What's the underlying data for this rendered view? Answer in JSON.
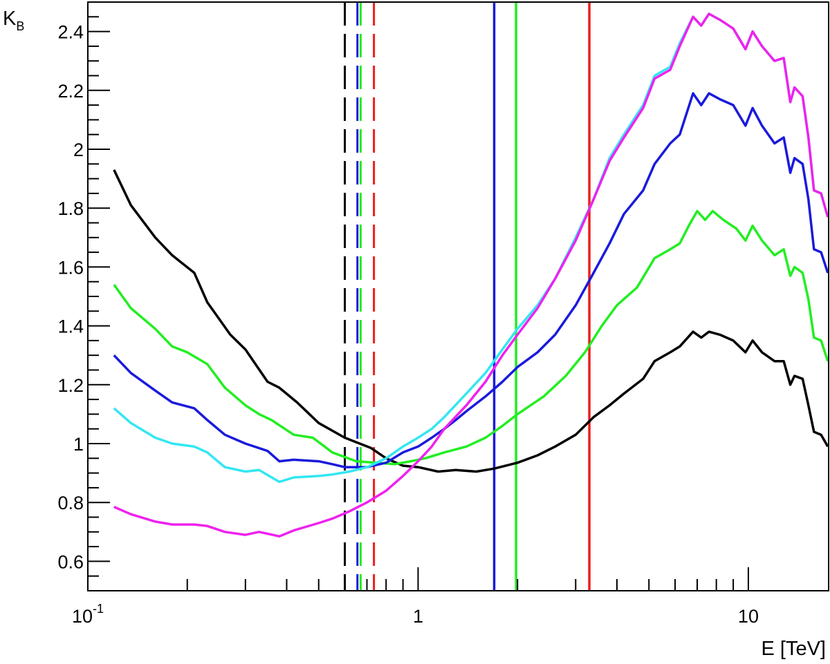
{
  "chart_data": {
    "type": "line",
    "xlabel": "E [TeV]",
    "ylabel_main": "K",
    "ylabel_sub": "B",
    "xscale": "log",
    "xlim": [
      0.1,
      17.5
    ],
    "ylim": [
      0.5,
      2.5
    ],
    "x_tick_labels": [
      {
        "value": 0.1,
        "base": "10",
        "exp": "-1"
      },
      {
        "value": 1,
        "base": "1",
        "exp": ""
      },
      {
        "value": 10,
        "base": "10",
        "exp": ""
      }
    ],
    "y_ticks": [
      0.6,
      0.8,
      1.0,
      1.2,
      1.4,
      1.6,
      1.8,
      2.0,
      2.2,
      2.4
    ],
    "y_tick_labels": [
      "0.6",
      "0.8",
      "1",
      "1.2",
      "1.4",
      "1.6",
      "1.8",
      "2",
      "2.2",
      "2.4"
    ],
    "grid": false,
    "series": [
      {
        "color": "#000000",
        "points": [
          [
            0.12,
            1.93
          ],
          [
            0.135,
            1.81
          ],
          [
            0.16,
            1.7
          ],
          [
            0.18,
            1.64
          ],
          [
            0.21,
            1.58
          ],
          [
            0.23,
            1.48
          ],
          [
            0.27,
            1.37
          ],
          [
            0.3,
            1.32
          ],
          [
            0.35,
            1.21
          ],
          [
            0.38,
            1.19
          ],
          [
            0.43,
            1.14
          ],
          [
            0.5,
            1.07
          ],
          [
            0.6,
            1.02
          ],
          [
            0.72,
            0.985
          ],
          [
            0.8,
            0.95
          ],
          [
            0.9,
            0.925
          ],
          [
            1.0,
            0.92
          ],
          [
            1.15,
            0.905
          ],
          [
            1.3,
            0.91
          ],
          [
            1.5,
            0.905
          ],
          [
            1.7,
            0.915
          ],
          [
            2.0,
            0.935
          ],
          [
            2.3,
            0.96
          ],
          [
            2.6,
            0.99
          ],
          [
            3.0,
            1.03
          ],
          [
            3.4,
            1.09
          ],
          [
            3.8,
            1.13
          ],
          [
            4.2,
            1.17
          ],
          [
            4.8,
            1.22
          ],
          [
            5.2,
            1.28
          ],
          [
            5.8,
            1.31
          ],
          [
            6.2,
            1.33
          ],
          [
            6.8,
            1.38
          ],
          [
            7.2,
            1.36
          ],
          [
            7.6,
            1.38
          ],
          [
            8.2,
            1.37
          ],
          [
            9.0,
            1.35
          ],
          [
            9.8,
            1.31
          ],
          [
            10.3,
            1.35
          ],
          [
            11.0,
            1.31
          ],
          [
            12.0,
            1.28
          ],
          [
            12.8,
            1.28
          ],
          [
            13.4,
            1.2
          ],
          [
            13.8,
            1.23
          ],
          [
            14.6,
            1.22
          ],
          [
            15.2,
            1.13
          ],
          [
            15.8,
            1.04
          ],
          [
            16.6,
            1.03
          ],
          [
            17.4,
            0.99
          ]
        ]
      },
      {
        "color": "#22ee22",
        "points": [
          [
            0.12,
            1.54
          ],
          [
            0.135,
            1.46
          ],
          [
            0.16,
            1.39
          ],
          [
            0.18,
            1.33
          ],
          [
            0.2,
            1.31
          ],
          [
            0.23,
            1.27
          ],
          [
            0.26,
            1.19
          ],
          [
            0.3,
            1.13
          ],
          [
            0.33,
            1.1
          ],
          [
            0.36,
            1.08
          ],
          [
            0.42,
            1.03
          ],
          [
            0.48,
            1.02
          ],
          [
            0.55,
            0.97
          ],
          [
            0.65,
            0.94
          ],
          [
            0.75,
            0.935
          ],
          [
            0.85,
            0.93
          ],
          [
            0.95,
            0.94
          ],
          [
            1.05,
            0.95
          ],
          [
            1.2,
            0.97
          ],
          [
            1.4,
            0.99
          ],
          [
            1.6,
            1.02
          ],
          [
            1.8,
            1.06
          ],
          [
            2.0,
            1.1
          ],
          [
            2.4,
            1.16
          ],
          [
            2.8,
            1.23
          ],
          [
            3.2,
            1.31
          ],
          [
            3.6,
            1.4
          ],
          [
            4.0,
            1.47
          ],
          [
            4.6,
            1.53
          ],
          [
            5.2,
            1.63
          ],
          [
            5.8,
            1.66
          ],
          [
            6.2,
            1.68
          ],
          [
            6.6,
            1.74
          ],
          [
            7.0,
            1.79
          ],
          [
            7.4,
            1.76
          ],
          [
            7.8,
            1.79
          ],
          [
            8.4,
            1.76
          ],
          [
            9.2,
            1.73
          ],
          [
            9.8,
            1.69
          ],
          [
            10.3,
            1.74
          ],
          [
            11.0,
            1.69
          ],
          [
            12.0,
            1.64
          ],
          [
            12.8,
            1.66
          ],
          [
            13.4,
            1.57
          ],
          [
            13.8,
            1.6
          ],
          [
            14.6,
            1.58
          ],
          [
            15.2,
            1.49
          ],
          [
            15.8,
            1.36
          ],
          [
            16.6,
            1.35
          ],
          [
            17.4,
            1.28
          ]
        ]
      },
      {
        "color": "#1a1adc",
        "points": [
          [
            0.12,
            1.3
          ],
          [
            0.135,
            1.24
          ],
          [
            0.16,
            1.18
          ],
          [
            0.18,
            1.14
          ],
          [
            0.21,
            1.12
          ],
          [
            0.23,
            1.08
          ],
          [
            0.26,
            1.03
          ],
          [
            0.3,
            1.0
          ],
          [
            0.35,
            0.975
          ],
          [
            0.38,
            0.94
          ],
          [
            0.42,
            0.945
          ],
          [
            0.5,
            0.94
          ],
          [
            0.55,
            0.93
          ],
          [
            0.6,
            0.92
          ],
          [
            0.7,
            0.92
          ],
          [
            0.8,
            0.935
          ],
          [
            0.9,
            0.97
          ],
          [
            1.0,
            0.99
          ],
          [
            1.1,
            1.02
          ],
          [
            1.2,
            1.05
          ],
          [
            1.3,
            1.08
          ],
          [
            1.4,
            1.11
          ],
          [
            1.6,
            1.16
          ],
          [
            1.8,
            1.21
          ],
          [
            2.0,
            1.26
          ],
          [
            2.3,
            1.31
          ],
          [
            2.6,
            1.37
          ],
          [
            3.0,
            1.47
          ],
          [
            3.4,
            1.58
          ],
          [
            3.8,
            1.68
          ],
          [
            4.2,
            1.78
          ],
          [
            4.8,
            1.86
          ],
          [
            5.2,
            1.95
          ],
          [
            5.8,
            2.02
          ],
          [
            6.2,
            2.05
          ],
          [
            6.8,
            2.19
          ],
          [
            7.2,
            2.15
          ],
          [
            7.6,
            2.19
          ],
          [
            8.2,
            2.17
          ],
          [
            9.0,
            2.15
          ],
          [
            9.8,
            2.08
          ],
          [
            10.3,
            2.14
          ],
          [
            11.0,
            2.08
          ],
          [
            12.0,
            2.02
          ],
          [
            12.8,
            2.04
          ],
          [
            13.4,
            1.92
          ],
          [
            13.8,
            1.97
          ],
          [
            14.6,
            1.95
          ],
          [
            15.2,
            1.83
          ],
          [
            15.8,
            1.66
          ],
          [
            16.6,
            1.65
          ],
          [
            17.4,
            1.58
          ]
        ]
      },
      {
        "color": "#33e6f2",
        "points": [
          [
            0.12,
            1.12
          ],
          [
            0.135,
            1.07
          ],
          [
            0.16,
            1.02
          ],
          [
            0.18,
            1.0
          ],
          [
            0.21,
            0.99
          ],
          [
            0.23,
            0.97
          ],
          [
            0.26,
            0.92
          ],
          [
            0.3,
            0.905
          ],
          [
            0.33,
            0.91
          ],
          [
            0.38,
            0.87
          ],
          [
            0.42,
            0.885
          ],
          [
            0.5,
            0.89
          ],
          [
            0.55,
            0.895
          ],
          [
            0.62,
            0.905
          ],
          [
            0.7,
            0.92
          ],
          [
            0.8,
            0.95
          ],
          [
            0.9,
            0.99
          ],
          [
            1.0,
            1.02
          ],
          [
            1.1,
            1.05
          ],
          [
            1.2,
            1.09
          ],
          [
            1.4,
            1.17
          ],
          [
            1.6,
            1.24
          ],
          [
            1.8,
            1.32
          ],
          [
            2.0,
            1.39
          ],
          [
            2.3,
            1.47
          ],
          [
            2.6,
            1.56
          ],
          [
            3.0,
            1.7
          ],
          [
            3.4,
            1.83
          ],
          [
            3.8,
            1.97
          ],
          [
            4.2,
            2.05
          ],
          [
            4.8,
            2.15
          ],
          [
            5.2,
            2.25
          ],
          [
            5.8,
            2.28
          ],
          [
            6.2,
            2.36
          ],
          [
            6.8,
            2.45
          ],
          [
            7.2,
            2.42
          ],
          [
            7.6,
            2.46
          ],
          [
            8.2,
            2.44
          ],
          [
            9.0,
            2.41
          ],
          [
            9.8,
            2.34
          ],
          [
            10.3,
            2.4
          ],
          [
            11.0,
            2.35
          ],
          [
            12.0,
            2.3
          ],
          [
            12.8,
            2.31
          ],
          [
            13.4,
            2.16
          ],
          [
            13.8,
            2.21
          ],
          [
            14.6,
            2.18
          ],
          [
            15.2,
            2.04
          ],
          [
            15.8,
            1.86
          ],
          [
            16.6,
            1.85
          ],
          [
            17.4,
            1.77
          ]
        ]
      },
      {
        "color": "#ee22ee",
        "points": [
          [
            0.12,
            0.785
          ],
          [
            0.135,
            0.76
          ],
          [
            0.16,
            0.735
          ],
          [
            0.18,
            0.725
          ],
          [
            0.21,
            0.725
          ],
          [
            0.23,
            0.72
          ],
          [
            0.26,
            0.7
          ],
          [
            0.3,
            0.69
          ],
          [
            0.33,
            0.7
          ],
          [
            0.38,
            0.685
          ],
          [
            0.42,
            0.705
          ],
          [
            0.5,
            0.73
          ],
          [
            0.55,
            0.745
          ],
          [
            0.62,
            0.77
          ],
          [
            0.7,
            0.8
          ],
          [
            0.8,
            0.84
          ],
          [
            0.9,
            0.89
          ],
          [
            1.0,
            0.94
          ],
          [
            1.1,
            0.99
          ],
          [
            1.2,
            1.05
          ],
          [
            1.4,
            1.13
          ],
          [
            1.6,
            1.21
          ],
          [
            1.8,
            1.3
          ],
          [
            2.0,
            1.37
          ],
          [
            2.3,
            1.46
          ],
          [
            2.6,
            1.56
          ],
          [
            3.0,
            1.69
          ],
          [
            3.4,
            1.83
          ],
          [
            3.8,
            1.96
          ],
          [
            4.2,
            2.04
          ],
          [
            4.8,
            2.14
          ],
          [
            5.2,
            2.24
          ],
          [
            5.8,
            2.27
          ],
          [
            6.2,
            2.35
          ],
          [
            6.8,
            2.45
          ],
          [
            7.2,
            2.42
          ],
          [
            7.6,
            2.46
          ],
          [
            8.2,
            2.44
          ],
          [
            9.0,
            2.41
          ],
          [
            9.8,
            2.34
          ],
          [
            10.3,
            2.4
          ],
          [
            11.0,
            2.35
          ],
          [
            12.0,
            2.3
          ],
          [
            12.8,
            2.31
          ],
          [
            13.4,
            2.16
          ],
          [
            13.8,
            2.21
          ],
          [
            14.6,
            2.18
          ],
          [
            15.2,
            2.04
          ],
          [
            15.8,
            1.86
          ],
          [
            16.6,
            1.85
          ],
          [
            17.4,
            1.77
          ]
        ]
      }
    ],
    "vertical_lines": [
      {
        "x": 0.6,
        "color": "#000000",
        "style": "dashed"
      },
      {
        "x": 0.655,
        "color": "#1a1adc",
        "style": "dashed"
      },
      {
        "x": 0.67,
        "color": "#22ee22",
        "style": "dashed"
      },
      {
        "x": 0.735,
        "color": "#ee1c1c",
        "style": "dashed"
      },
      {
        "x": 1.7,
        "color": "#1a1adc",
        "style": "solid"
      },
      {
        "x": 1.98,
        "color": "#22ee22",
        "style": "solid"
      },
      {
        "x": 3.3,
        "color": "#ee1c1c",
        "style": "solid"
      }
    ]
  }
}
